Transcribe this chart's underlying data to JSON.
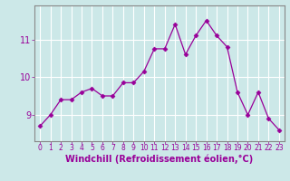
{
  "x": [
    0,
    1,
    2,
    3,
    4,
    5,
    6,
    7,
    8,
    9,
    10,
    11,
    12,
    13,
    14,
    15,
    16,
    17,
    18,
    19,
    20,
    21,
    22,
    23
  ],
  "y": [
    8.7,
    9.0,
    9.4,
    9.4,
    9.6,
    9.7,
    9.5,
    9.5,
    9.85,
    9.85,
    10.15,
    10.75,
    10.75,
    11.4,
    10.6,
    11.1,
    11.5,
    11.1,
    10.8,
    9.6,
    9.0,
    9.6,
    8.9,
    8.6
  ],
  "line_color": "#990099",
  "marker": "D",
  "marker_size": 2.5,
  "bg_color": "#cce8e8",
  "grid_color": "#b0d8d8",
  "xlabel": "Windchill (Refroidissement éolien,°C)",
  "xlabel_color": "#990099",
  "tick_color": "#990099",
  "yticks": [
    9,
    10,
    11
  ],
  "ylim": [
    8.3,
    11.9
  ],
  "xlim": [
    -0.5,
    23.5
  ],
  "xticks": [
    0,
    1,
    2,
    3,
    4,
    5,
    6,
    7,
    8,
    9,
    10,
    11,
    12,
    13,
    14,
    15,
    16,
    17,
    18,
    19,
    20,
    21,
    22,
    23
  ],
  "tick_fontsize": 5.5,
  "ytick_fontsize": 7.0,
  "xlabel_fontsize": 7.0,
  "linewidth": 0.9
}
